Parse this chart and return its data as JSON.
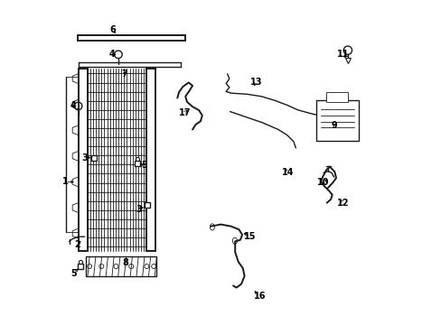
{
  "bg_color": "#ffffff",
  "line_color": "#1a1a1a",
  "figsize": [
    4.89,
    3.6
  ],
  "dpi": 100,
  "leaders": {
    "1": {
      "label": [
        0.018,
        0.44
      ],
      "arrow": [
        0.053,
        0.44
      ]
    },
    "2": {
      "label": [
        0.055,
        0.245
      ],
      "arrow": [
        0.072,
        0.262
      ]
    },
    "3a": {
      "label": [
        0.078,
        0.515
      ],
      "arrow": [
        0.105,
        0.515
      ]
    },
    "3b": {
      "label": [
        0.245,
        0.355
      ],
      "arrow": [
        0.268,
        0.365
      ]
    },
    "4a": {
      "label": [
        0.163,
        0.835
      ],
      "arrow": [
        0.182,
        0.835
      ]
    },
    "4b": {
      "label": [
        0.042,
        0.675
      ],
      "arrow": [
        0.058,
        0.675
      ]
    },
    "5a": {
      "label": [
        0.045,
        0.155
      ],
      "arrow": [
        0.063,
        0.178
      ]
    },
    "5b": {
      "label": [
        0.262,
        0.492
      ],
      "arrow": [
        0.242,
        0.497
      ]
    },
    "6": {
      "label": [
        0.165,
        0.912
      ],
      "arrow": [
        0.178,
        0.893
      ]
    },
    "7": {
      "label": [
        0.2,
        0.775
      ],
      "arrow": [
        0.212,
        0.788
      ]
    },
    "8": {
      "label": [
        0.205,
        0.188
      ],
      "arrow": [
        0.215,
        0.203
      ]
    },
    "9": {
      "label": [
        0.852,
        0.615
      ],
      "arrow": [
        0.838,
        0.625
      ]
    },
    "10": {
      "label": [
        0.818,
        0.438
      ],
      "arrow": [
        0.835,
        0.453
      ]
    },
    "11": {
      "label": [
        0.878,
        0.835
      ],
      "arrow": [
        0.892,
        0.818
      ]
    },
    "12": {
      "label": [
        0.878,
        0.375
      ],
      "arrow": [
        0.863,
        0.39
      ]
    },
    "13": {
      "label": [
        0.61,
        0.75
      ],
      "arrow": [
        0.598,
        0.73
      ]
    },
    "14": {
      "label": [
        0.708,
        0.468
      ],
      "arrow": [
        0.692,
        0.488
      ]
    },
    "15": {
      "label": [
        0.59,
        0.27
      ],
      "arrow": [
        0.563,
        0.285
      ]
    },
    "16": {
      "label": [
        0.62,
        0.085
      ],
      "arrow": [
        0.598,
        0.108
      ]
    },
    "17": {
      "label": [
        0.388,
        0.655
      ],
      "arrow": [
        0.402,
        0.668
      ]
    }
  },
  "label_display": {
    "1": "1",
    "2": "2",
    "3a": "3",
    "3b": "3",
    "4a": "4",
    "4b": "4",
    "5a": "5",
    "5b": "5",
    "6": "6",
    "7": "7",
    "8": "8",
    "9": "9",
    "10": "10",
    "11": "11",
    "12": "12",
    "13": "13",
    "14": "14",
    "15": "15",
    "16": "16",
    "17": "17"
  }
}
